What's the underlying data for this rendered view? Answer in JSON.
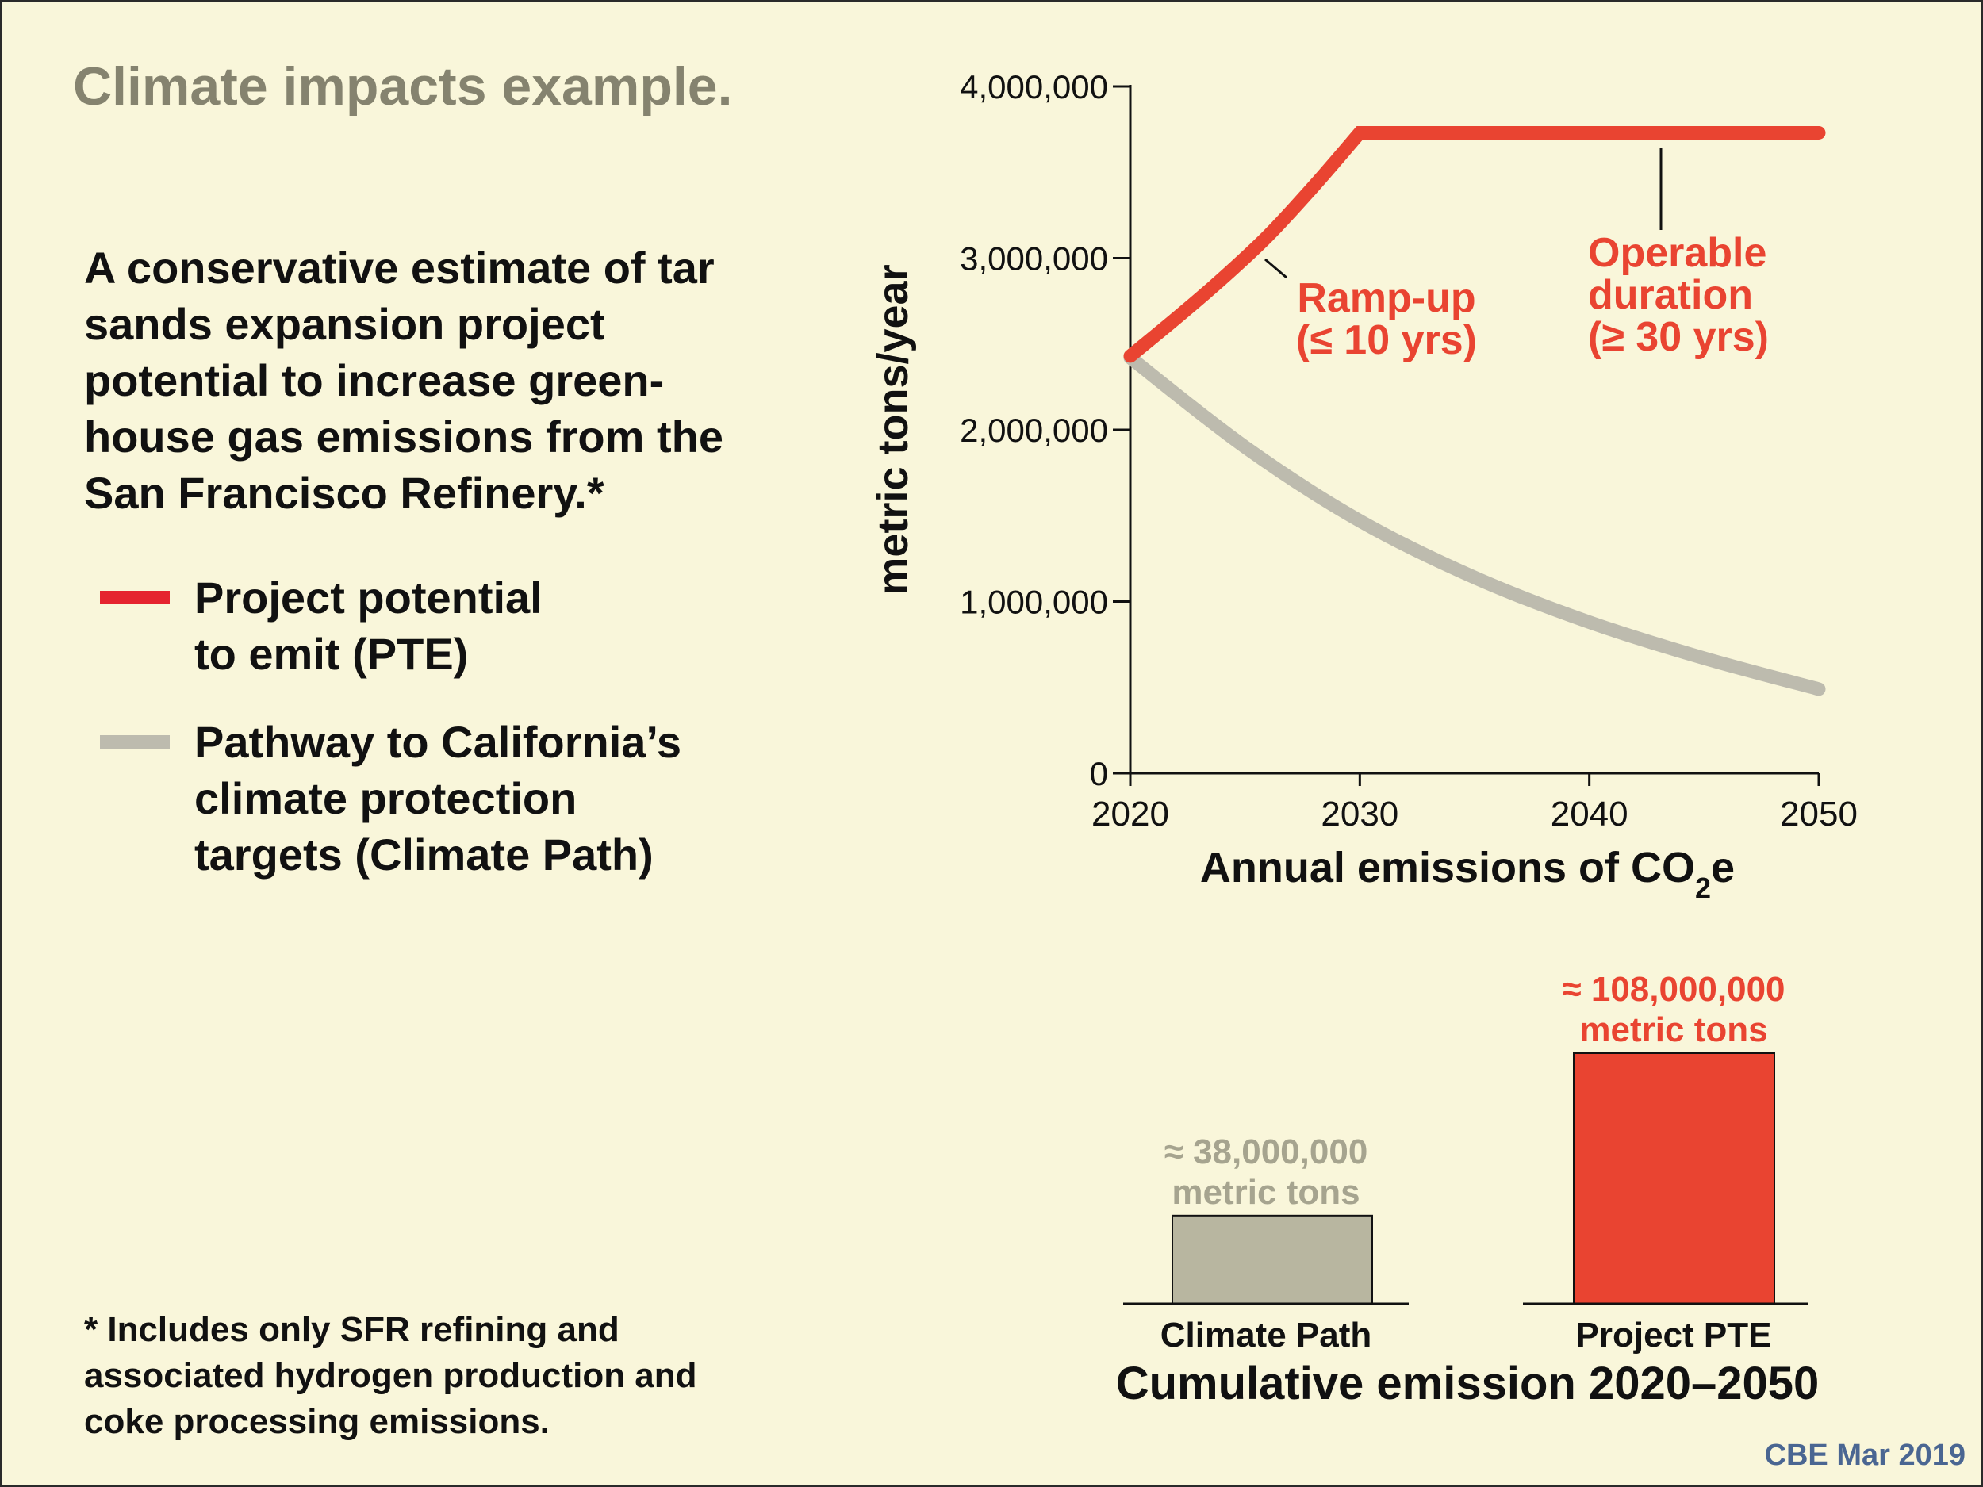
{
  "title": "Climate impacts example.",
  "headline": "A conservative estimate of tar sands expansion project potential to increase green-house gas emissions from the San Francisco Refinery.*",
  "legend": [
    {
      "lines": [
        "Project potential",
        "to emit (PTE)"
      ],
      "color": "#e5242f"
    },
    {
      "lines": [
        "Pathway to California’s",
        "climate protection",
        "targets (Climate Path)"
      ],
      "color": "#bdbbae"
    }
  ],
  "footnote": "* Includes only SFR refining and associated hydrogen production and coke processing emissions.",
  "credit": "CBE Mar 2019",
  "colors": {
    "pte": "#e94431",
    "climate": "#bdbbae",
    "climate_bar": "#b8b6a0",
    "axis": "#111111",
    "label_pte": "#e94431",
    "label_climate": "#a6a48f"
  },
  "chart_data": [
    {
      "type": "line",
      "xlabel": "Annual emissions of CO₂e",
      "xlabel_parts": {
        "main": "Annual emissions of CO",
        "sub": "2",
        "tail": "e"
      },
      "ylabel": "metric tons/year",
      "xlim": [
        2020,
        2050
      ],
      "ylim": [
        0,
        4000000
      ],
      "x_ticks": [
        2020,
        2030,
        2040,
        2050
      ],
      "y_ticks": [
        0,
        1000000,
        2000000,
        3000000,
        4000000
      ],
      "y_tick_labels": [
        "0",
        "1,000,000",
        "2,000,000",
        "3,000,000",
        "4,000,000"
      ],
      "series": [
        {
          "key": "pte",
          "color": "#e94431",
          "x": [
            2020,
            2022,
            2024,
            2026,
            2028,
            2030,
            2035,
            2040,
            2045,
            2050
          ],
          "y": [
            2430000,
            2650000,
            2880000,
            3130000,
            3420000,
            3730000,
            3730000,
            3730000,
            3730000,
            3730000
          ]
        },
        {
          "key": "climate",
          "color": "#bdbbae",
          "x": [
            2020,
            2025,
            2030,
            2035,
            2040,
            2045,
            2050
          ],
          "y": [
            2420000,
            1900000,
            1470000,
            1140000,
            880000,
            670000,
            490000
          ]
        }
      ],
      "annotations": [
        {
          "lines": [
            "Ramp-up",
            "(≤ 10 yrs)"
          ],
          "x": 2026,
          "y": 2980000
        },
        {
          "lines": [
            "Operable",
            "duration",
            "(≥ 30 yrs)"
          ],
          "x": 2043,
          "y": 3400000
        }
      ]
    },
    {
      "type": "bar",
      "title": "Cumulative emission 2020–2050",
      "categories": [
        "Climate Path",
        "Project PTE"
      ],
      "values": [
        38000000,
        108000000
      ],
      "data_labels": [
        [
          "≈ 38,000,000",
          "metric tons"
        ],
        [
          "≈ 108,000,000",
          "metric tons"
        ]
      ],
      "colors": [
        "#b8b6a0",
        "#e94431"
      ]
    }
  ]
}
